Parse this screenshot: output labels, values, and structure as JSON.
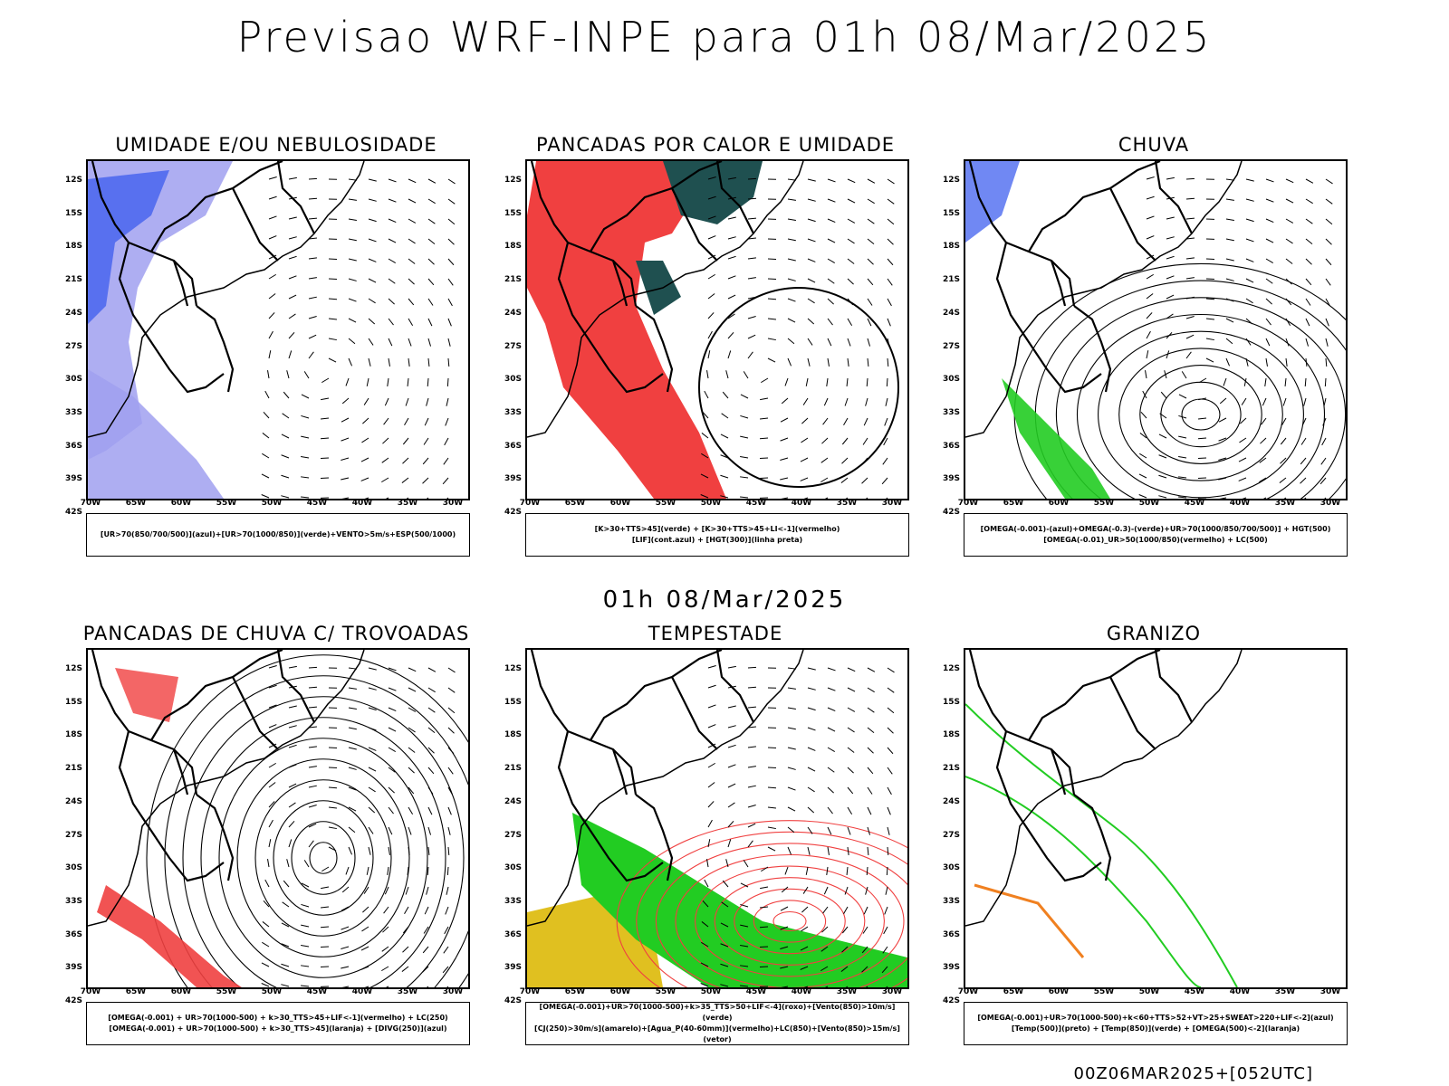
{
  "title": "Previsao WRF-INPE  para 01h 08/Mar/2025",
  "mid_date": "01h 08/Mar/2025",
  "footer": "00Z06MAR2025+[052UTC]",
  "lat_ticks": [
    "12S",
    "15S",
    "18S",
    "21S",
    "24S",
    "27S",
    "30S",
    "33S",
    "36S",
    "39S",
    "42S"
  ],
  "lon_ticks": [
    "70W",
    "65W",
    "60W",
    "55W",
    "50W",
    "45W",
    "40W",
    "35W",
    "30W"
  ],
  "colors": {
    "red": "#f04040",
    "green": "#22cc22",
    "blue": "#3355ee",
    "darkgreen": "#1f5050",
    "lavender": "#a0a0f0",
    "yellow": "#e0c020",
    "orange": "#f08020"
  },
  "panels": [
    {
      "title": "UMIDADE E/OU NEBULOSIDADE",
      "legend": [
        "[UR>70(850/700/500)](azul)+[UR>70(1000/850)](verde)+VENTO>5m/s+ESP(500/1000)"
      ]
    },
    {
      "title": "PANCADAS POR CALOR E UMIDADE",
      "legend": [
        "[K>30+TTS>45](verde) + [K>30+TTS>45+LI<-1](vermelho)",
        "[LIF](cont.azul) + [HGT(300)](linha preta)"
      ]
    },
    {
      "title": "CHUVA",
      "legend": [
        "[OMEGA(-0.001)-(azul)+OMEGA(-0.3)-(verde)+UR>70(1000/850/700/500)] + HGT(500)",
        "[OMEGA(-0.01)_UR>50(1000/850)(vermelho) + LC(500)"
      ]
    },
    {
      "title": "PANCADAS DE CHUVA C/ TROVOADAS",
      "legend": [
        "[OMEGA(-0.001) + UR>70(1000-500) + k>30_TTS>45+LIF<-1](vermelho) + LC(250)",
        "[OMEGA(-0.001) + UR>70(1000-500) + k>30_TTS>45](laranja) + [DIVG(250)](azul)"
      ]
    },
    {
      "title": "TEMPESTADE",
      "legend": [
        "[OMEGA(-0.001)+UR>70(1000-500)+k>35_TTS>50+LIF<-4](roxo)+[Vento(850)>10m/s](verde)",
        "[CJ(250)>30m/s](amarelo)+[Agua_P(40-60mm)](vermelho)+LC(850)+[Vento(850)>15m/s](vetor)"
      ]
    },
    {
      "title": "GRANIZO",
      "legend": [
        "[OMEGA(-0.001)+UR>70(1000-500)+k<60+TTS>52+VT>25+SWEAT>220+LIF<-2](azul)",
        "[Temp(500)](preto) + [Temp(850)](verde) + [OMEGA(500)<-2](laranja)"
      ]
    }
  ]
}
